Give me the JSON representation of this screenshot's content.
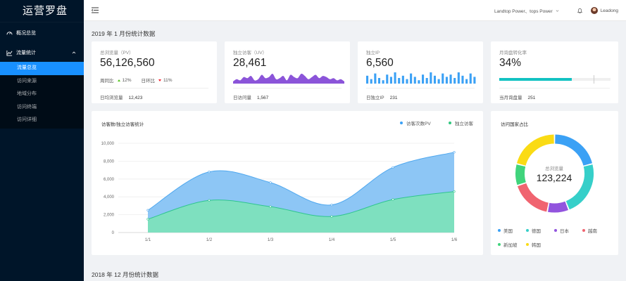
{
  "sidebar": {
    "logo": "运营罗盘",
    "overview": "概况总览",
    "traffic_group": "流量统计",
    "sub_items": [
      "流量总览",
      "访问来源",
      "地域分布",
      "访问终端",
      "访问详细"
    ]
  },
  "header": {
    "user_org": "Landtop Power、tops Power",
    "user_name": "Leadong"
  },
  "sections": {
    "current": "2019 年 1 月份统计数据",
    "previous": "2018 年 12 月份统计数据"
  },
  "kpis": {
    "pv": {
      "label": "总浏览量（PV）",
      "value": "56,126,560",
      "week_label": "周同比",
      "week_value": "12%",
      "day_label": "日环比",
      "day_value": "11%",
      "footer_label": "日均浏览量",
      "footer_value": "12,423"
    },
    "uv": {
      "label": "独立访客（UV）",
      "value": "28,461",
      "footer_label": "日访问量",
      "footer_value": "1,567",
      "spark": [
        2,
        4,
        3,
        6,
        5,
        7,
        3,
        4,
        8,
        5,
        6,
        9,
        4,
        5,
        7,
        3,
        8,
        6,
        5,
        9,
        7,
        4,
        6,
        8,
        5,
        7,
        6,
        4,
        5,
        3,
        4,
        2
      ]
    },
    "ip": {
      "label": "独立IP",
      "value": "6,560",
      "footer_label": "日独立IP",
      "footer_value": "231",
      "bars": [
        7,
        4,
        9,
        5,
        3,
        8,
        6,
        10,
        5,
        7,
        4,
        9,
        6,
        3,
        8,
        5,
        10,
        7,
        4,
        9,
        6,
        8,
        5,
        10,
        7,
        4,
        9,
        6
      ]
    },
    "conversion": {
      "label": "月询盘转化率",
      "value": "34%",
      "progress": 0.65,
      "target": 0.85,
      "footer_label": "当月询盘量",
      "footer_value": "251"
    }
  },
  "visits_chart": {
    "title": "访客数/独立访客统计",
    "legend": [
      {
        "name": "访客次数PV",
        "color": "#3ba1f5"
      },
      {
        "name": "独立访客",
        "color": "#31c77f"
      }
    ]
  },
  "chart_data": [
    {
      "type": "area",
      "categories": [
        "1/1",
        "1/2",
        "1/3",
        "1/4",
        "1/5",
        "1/6"
      ],
      "series": [
        {
          "name": "访客次数PV",
          "values": [
            2500,
            6800,
            5600,
            3100,
            7300,
            9000
          ]
        },
        {
          "name": "独立访客",
          "values": [
            1500,
            3600,
            2900,
            1800,
            3700,
            4600
          ]
        }
      ],
      "yticks": [
        "0",
        "2,000",
        "4,000",
        "6,000",
        "8,000",
        "10,000"
      ],
      "ylim": [
        0,
        10000
      ]
    },
    {
      "type": "pie",
      "categories": [
        "美国",
        "德国",
        "日本",
        "越南",
        "新加坡",
        "韩国"
      ],
      "values": [
        21,
        23,
        9,
        17,
        9,
        21
      ],
      "colors": [
        "#3ba1f5",
        "#36cfc9",
        "#9254de",
        "#f06470",
        "#40d47c",
        "#fadb14"
      ],
      "center_label": "总浏览量",
      "center_value": "123,224"
    }
  ],
  "country_chart": {
    "title": "访问国家占比"
  }
}
